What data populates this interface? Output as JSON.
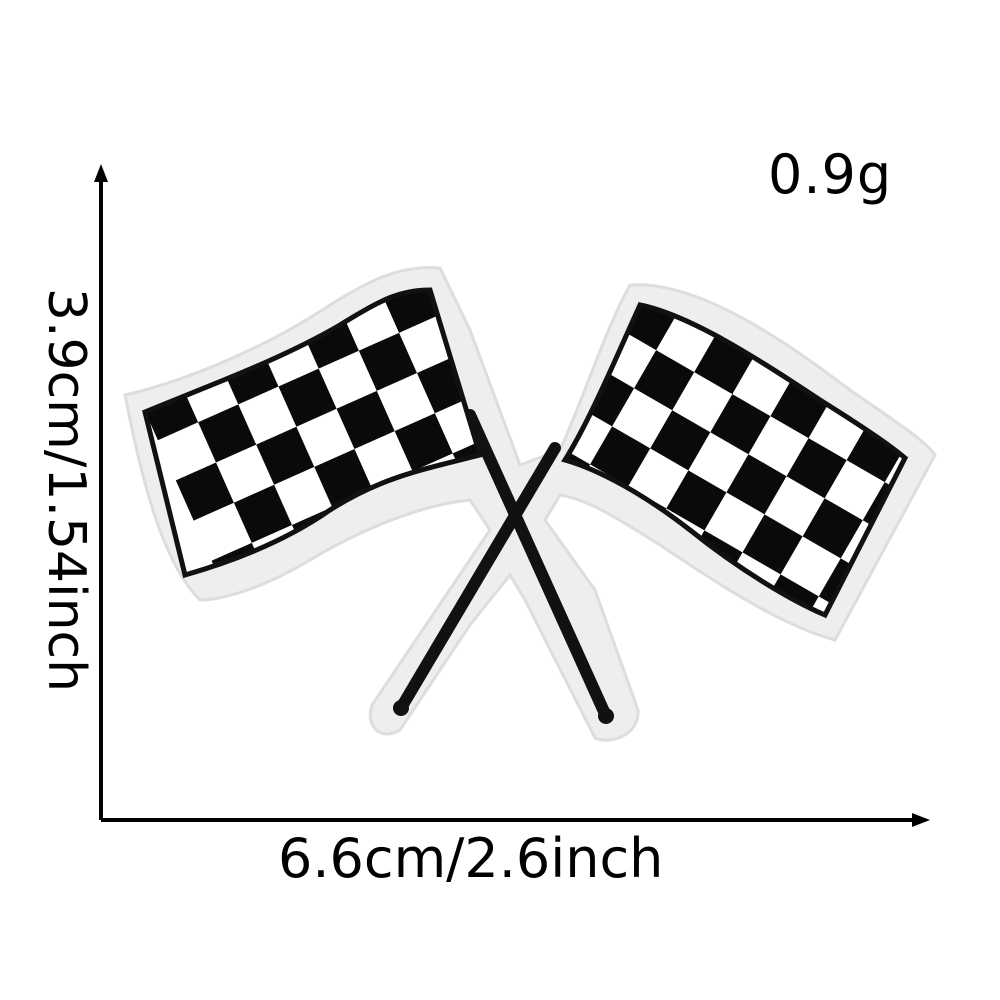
{
  "labels": {
    "weight": "0.9g",
    "width": "6.6cm/2.6inch",
    "height": "3.9cm/1.54inch"
  },
  "colors": {
    "background": "#ffffff",
    "ink": "#000000",
    "felt_border": "#eeeeee",
    "checker_white": "#ffffff",
    "checker_black": "#0a0a0a"
  },
  "icons": [
    "checkered-flag-icon",
    "checkered-flag-icon"
  ]
}
